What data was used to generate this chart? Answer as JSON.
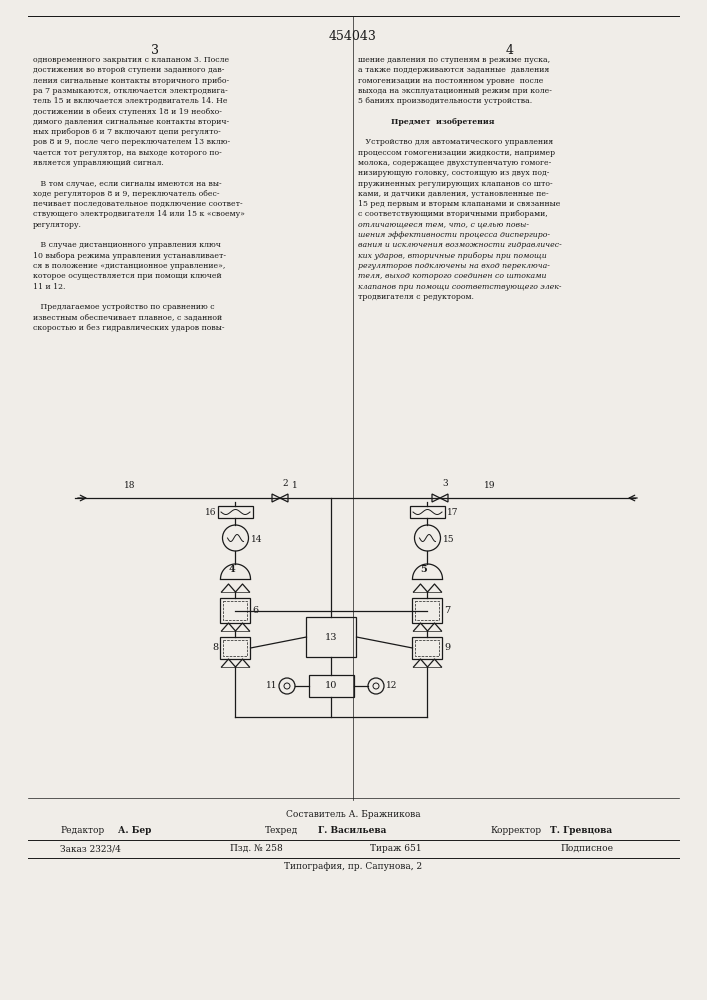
{
  "patent_number": "454043",
  "bg_color": "#f0ede8",
  "text_color": "#1a1a1a",
  "diagram_color": "#1a1a1a",
  "col3_lines": [
    "одновременного закрытия с клапаном 3. После",
    "достижения во второй ступени заданного дав-",
    "ления сигнальные контакты вторичного прибо-",
    "ра 7 размыкаются, отключается электродвига-",
    "тель 15 и включается электродвигатель 14. Не",
    "достижении в обеих ступенях 18 и 19 необхо-",
    "димого давления сигнальные контакты вторич-",
    "ных приборов 6 и 7 включают цепи регулято-",
    "ров 8 и 9, после чего переключателем 13 вклю-",
    "чается тот регулятор, на выходе которого по-",
    "является управляющий сигнал.",
    "",
    "   В том случае, если сигналы имеются на вы-",
    "ходе регуляторов 8 и 9, переключатель обес-",
    "печивает последовательное подключение соответ-",
    "ствующего электродвигателя 14 или 15 к «своему»",
    "регулятору.",
    "",
    "   В случае дистанционного управления ключ",
    "10 выбора режима управления устанавливает-",
    "ся в положение «дистанционное управление»,",
    "которое осуществляется при помощи ключей",
    "11 и 12.",
    "",
    "   Предлагаемое устройство по сравнению с",
    "известным обеспечивает плавное, с заданной",
    "скоростью и без гидравлических ударов повы-"
  ],
  "col4_lines": [
    "шение давления по ступеням в режиме пуска,",
    "а также поддерживаются заданные  давления",
    "гомогенизации на постоянном уровне  после",
    "выхода на эксплуатационный режим при коле-",
    "5 баниях производительности устройства.",
    "",
    "            Предмет  изобретения",
    "",
    "   Устройство для автоматического управления",
    "процессом гомогенизации жидкости, например",
    "молока, содержащее двухступенчатую гомоге-",
    "низирующую головку, состоящую из двух под-",
    "пружиненных регулирующих клапанов со што-",
    "ками, и датчики давления, установленные пе-",
    "15 ред первым и вторым клапанами и связанные",
    "с соответствующими вторичными приборами,",
    "отличающееся тем, что, с целью повы-",
    "шения эффективности процесса диспергиро-",
    "вания и исключения возможности гидравличес-",
    "ких ударов, вторичные приборы при помощи",
    "регуляторов подключены на вход переключа-",
    "теля, выход которого соединен со штоками",
    "клапанов при помощи соответствующего элек-",
    "тродвигателя с редуктором."
  ],
  "footer_compiler": "Составитель А. Бражникова",
  "footer_row1": [
    "Редактор",
    "А. Бер",
    "Техред",
    "Г. Васильева",
    "Корректор",
    "Т. Гревцова"
  ],
  "footer_row2": [
    "Заказ 2323/4",
    "Пзд. № 258",
    "Тираж 651",
    "Подписное"
  ],
  "footer_typography": "Типография, пр. Сапунова, 2"
}
